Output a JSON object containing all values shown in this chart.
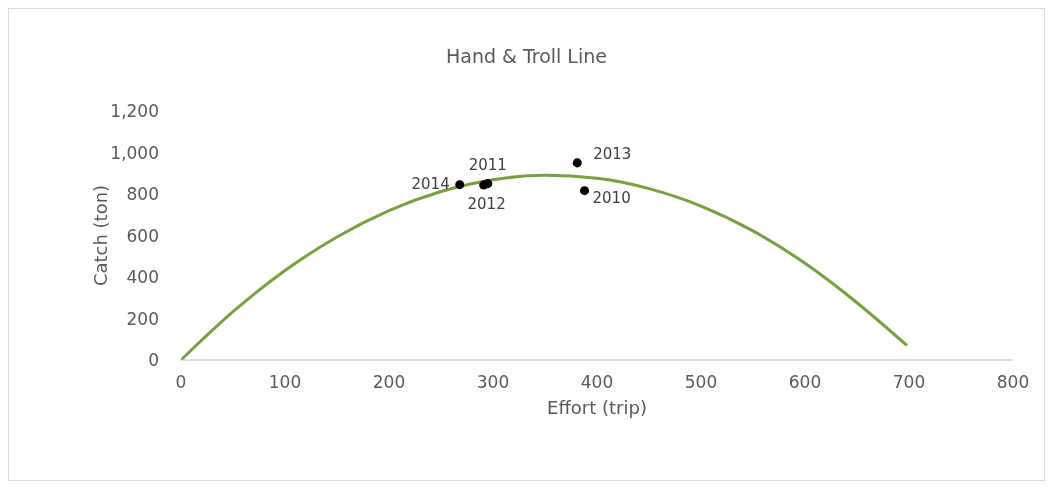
{
  "chart_data": {
    "type": "scatter",
    "title": "Hand & Troll Line",
    "xlabel": "Effort (trip)",
    "ylabel": "Catch (ton)",
    "xlim": [
      0,
      800
    ],
    "xticks": [
      0,
      100,
      200,
      300,
      400,
      500,
      600,
      700,
      800
    ],
    "ylim": [
      0,
      1200
    ],
    "yticks": [
      0,
      200,
      400,
      600,
      800,
      {
        "value": 1000,
        "label": "1,000"
      },
      {
        "value": 1200,
        "label": "1,200"
      }
    ],
    "grid": false,
    "legend": false,
    "series": [
      {
        "type": "line",
        "color": "#77a043",
        "marker": "none",
        "line_style": "solid",
        "x": [
          0,
          50,
          100,
          150,
          200,
          250,
          300,
          350,
          400,
          450,
          500,
          550,
          600,
          650,
          698
        ],
        "values": [
          0,
          233,
          431,
          593,
          720,
          812,
          869,
          890,
          876,
          826,
          742,
          622,
          466,
          276,
          70
        ]
      },
      {
        "color": "#000000",
        "marker": "circle",
        "x": [
          388,
          295,
          291,
          381,
          268
        ],
        "values": [
          816,
          850,
          843,
          950,
          845
        ]
      }
    ],
    "annotations": [
      {
        "text": "2010",
        "x": 388,
        "y": 816
      },
      {
        "text": "2011",
        "x": 295,
        "y": 850
      },
      {
        "text": "2012",
        "x": 291,
        "y": 843
      },
      {
        "text": "2013",
        "x": 381,
        "y": 950
      },
      {
        "text": "2014",
        "x": 268,
        "y": 845
      }
    ]
  }
}
